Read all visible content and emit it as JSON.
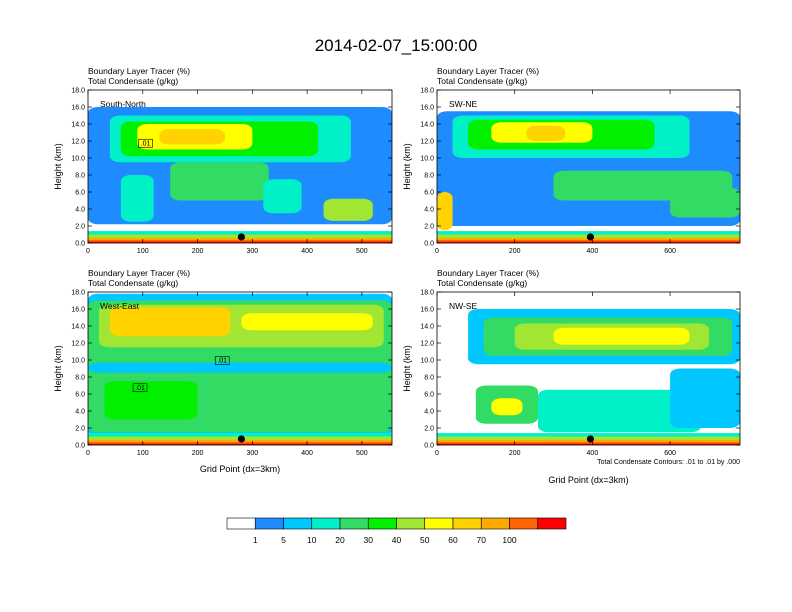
{
  "chart_data": {
    "type": "heatmap",
    "title": "2014-02-07_15:00:00",
    "colorbar": {
      "labels": [
        "1",
        "5",
        "10",
        "20",
        "30",
        "40",
        "50",
        "60",
        "70",
        "100"
      ],
      "colors": [
        "#ffffff",
        "#1e8cff",
        "#00c8ff",
        "#00f0c8",
        "#32dc64",
        "#00f000",
        "#a0e632",
        "#ffff00",
        "#ffd200",
        "#ffaa00",
        "#ff6400",
        "#ff0000"
      ]
    },
    "panels": [
      {
        "id": "south-north",
        "tag": "South-North",
        "var1": "Boundary Layer Tracer   (%)",
        "var2": "Total Condensate   (g/kg)",
        "ylabel": "Height (km)",
        "xlabel": "",
        "yticks": [
          "0.0",
          "2.0",
          "4.0",
          "6.0",
          "8.0",
          "10.0",
          "12.0",
          "14.0",
          "16.0",
          "18.0"
        ],
        "xticks": [
          0,
          100,
          200,
          300,
          400,
          500
        ],
        "xmax": 555,
        "ymax": 18,
        "marker_x": 280,
        "contour_labels": [
          {
            "text": ".01",
            "x": 105,
            "y": 11.5
          }
        ]
      },
      {
        "id": "sw-ne",
        "tag": "SW-NE",
        "var1": "Boundary Layer Tracer   (%)",
        "var2": "Total Condensate   (g/kg)",
        "ylabel": "Height (km)",
        "xlabel": "",
        "yticks": [
          "0.0",
          "2.0",
          "4.0",
          "6.0",
          "8.0",
          "10.0",
          "12.0",
          "14.0",
          "16.0",
          "18.0"
        ],
        "xticks": [
          0,
          200,
          400,
          600
        ],
        "xmax": 780,
        "ymax": 18,
        "marker_x": 395,
        "contour_labels": []
      },
      {
        "id": "west-east",
        "tag": "West-East",
        "var1": "Boundary Layer Tracer   (%)",
        "var2": "Total Condensate   (g/kg)",
        "ylabel": "Height (km)",
        "xlabel": "Grid Point (dx=3km)",
        "yticks": [
          "0.0",
          "2.0",
          "4.0",
          "6.0",
          "8.0",
          "10.0",
          "12.0",
          "14.0",
          "16.0",
          "18.0"
        ],
        "xticks": [
          0,
          100,
          200,
          300,
          400,
          500
        ],
        "xmax": 555,
        "ymax": 18,
        "marker_x": 280,
        "contour_labels": [
          {
            "text": ".01",
            "x": 245,
            "y": 9.7
          },
          {
            "text": ".01",
            "x": 95,
            "y": 6.5
          }
        ]
      },
      {
        "id": "nw-se",
        "tag": "NW-SE",
        "var1": "Boundary Layer Tracer   (%)",
        "var2": "Total Condensate   (g/kg)",
        "ylabel": "Height (km)",
        "xlabel": "Grid Point (dx=3km)",
        "yticks": [
          "0.0",
          "2.0",
          "4.0",
          "6.0",
          "8.0",
          "10.0",
          "12.0",
          "14.0",
          "16.0",
          "18.0"
        ],
        "xticks": [
          0,
          200,
          400,
          600
        ],
        "xmax": 780,
        "ymax": 18,
        "marker_x": 395,
        "contour_labels": [],
        "footnote": "Total Condensate Contours: .01 to .01 by .000"
      }
    ]
  }
}
